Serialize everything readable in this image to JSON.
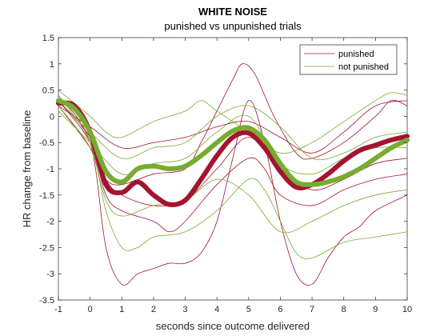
{
  "chart_data": {
    "type": "line",
    "title": "WHITE NOISE",
    "subtitle": "punished vs unpunished trials",
    "xlabel": "seconds since outcome delivered",
    "ylabel": "HR change from baseline",
    "xlim": [
      -1,
      10
    ],
    "ylim": [
      -3.5,
      1.5
    ],
    "xticks": [
      -1,
      0,
      1,
      2,
      3,
      4,
      5,
      6,
      7,
      8,
      9,
      10
    ],
    "yticks": [
      -3.5,
      -3,
      -2.5,
      -2,
      -1.5,
      -1,
      -0.5,
      0,
      0.5,
      1,
      1.5
    ],
    "grid": false,
    "legend_position": "top-right",
    "colors": {
      "punished": "#a2142f",
      "not_punished": "#77ac30"
    },
    "series": [
      {
        "name": "punished",
        "role": "mean",
        "values": [
          [
            -1,
            0.25
          ],
          [
            -0.5,
            0.2
          ],
          [
            0,
            -0.3
          ],
          [
            0.5,
            -1.3
          ],
          [
            1,
            -1.45
          ],
          [
            1.5,
            -1.25
          ],
          [
            2,
            -1.5
          ],
          [
            2.5,
            -1.68
          ],
          [
            3,
            -1.6
          ],
          [
            3.5,
            -1.2
          ],
          [
            4,
            -0.75
          ],
          [
            4.5,
            -0.4
          ],
          [
            5,
            -0.32
          ],
          [
            5.5,
            -0.6
          ],
          [
            6,
            -1.05
          ],
          [
            6.5,
            -1.35
          ],
          [
            7,
            -1.3
          ],
          [
            7.5,
            -1.1
          ],
          [
            8,
            -0.85
          ],
          [
            8.5,
            -0.65
          ],
          [
            9,
            -0.55
          ],
          [
            9.5,
            -0.45
          ],
          [
            10,
            -0.38
          ]
        ]
      },
      {
        "name": "not punished",
        "role": "mean",
        "values": [
          [
            -1,
            0.3
          ],
          [
            -0.5,
            0.15
          ],
          [
            0,
            -0.3
          ],
          [
            0.5,
            -1.05
          ],
          [
            1,
            -1.25
          ],
          [
            1.5,
            -1.0
          ],
          [
            2,
            -0.95
          ],
          [
            2.5,
            -1.0
          ],
          [
            3,
            -0.95
          ],
          [
            3.5,
            -0.75
          ],
          [
            4,
            -0.5
          ],
          [
            4.5,
            -0.28
          ],
          [
            5,
            -0.22
          ],
          [
            5.5,
            -0.45
          ],
          [
            6,
            -0.9
          ],
          [
            6.5,
            -1.25
          ],
          [
            7,
            -1.3
          ],
          [
            7.5,
            -1.25
          ],
          [
            8,
            -1.15
          ],
          [
            8.5,
            -1.0
          ],
          [
            9,
            -0.8
          ],
          [
            9.5,
            -0.6
          ],
          [
            10,
            -0.45
          ]
        ]
      },
      {
        "name": "punished",
        "role": "trial",
        "values": [
          [
            -1,
            0.4
          ],
          [
            0,
            -0.5
          ],
          [
            0.5,
            -2.5
          ],
          [
            1,
            -3.2
          ],
          [
            1.5,
            -3.0
          ],
          [
            2,
            -2.9
          ],
          [
            2.5,
            -2.8
          ],
          [
            3,
            -2.8
          ],
          [
            3.5,
            -2.6
          ],
          [
            4,
            -2.0
          ],
          [
            4.5,
            -0.8
          ],
          [
            5,
            0.3
          ],
          [
            5.5,
            -0.5
          ],
          [
            6,
            -2.0
          ],
          [
            6.5,
            -3.0
          ],
          [
            7,
            -3.2
          ],
          [
            7.5,
            -2.7
          ],
          [
            8,
            -2.3
          ],
          [
            8.5,
            -2.1
          ],
          [
            9,
            -1.8
          ],
          [
            10,
            -1.5
          ]
        ]
      },
      {
        "name": "punished",
        "role": "trial",
        "values": [
          [
            -1,
            0.2
          ],
          [
            0,
            -0.6
          ],
          [
            0.5,
            -1.2
          ],
          [
            1,
            -1.3
          ],
          [
            2,
            -1.1
          ],
          [
            3,
            -1.0
          ],
          [
            3.5,
            -0.5
          ],
          [
            4,
            0.1
          ],
          [
            4.5,
            0.7
          ],
          [
            4.8,
            1.0
          ],
          [
            5.2,
            0.8
          ],
          [
            5.8,
            0.0
          ],
          [
            6.5,
            -0.7
          ],
          [
            7,
            -0.8
          ],
          [
            8,
            -0.5
          ],
          [
            9,
            0.0
          ],
          [
            9.5,
            0.3
          ],
          [
            10,
            0.2
          ]
        ]
      },
      {
        "name": "punished",
        "role": "trial",
        "values": [
          [
            -1,
            0.3
          ],
          [
            0,
            -0.5
          ],
          [
            0.5,
            -1.5
          ],
          [
            1,
            -1.8
          ],
          [
            2,
            -2.0
          ],
          [
            2.5,
            -2.2
          ],
          [
            3,
            -2.0
          ],
          [
            4,
            -1.3
          ],
          [
            5,
            -0.8
          ],
          [
            5.5,
            -1.0
          ],
          [
            6,
            -1.5
          ],
          [
            7,
            -1.7
          ],
          [
            8,
            -1.4
          ],
          [
            9,
            -1.2
          ],
          [
            10,
            -1.1
          ]
        ]
      },
      {
        "name": "punished",
        "role": "trial",
        "values": [
          [
            -1,
            0.2
          ],
          [
            0,
            -0.2
          ],
          [
            1,
            -0.6
          ],
          [
            2,
            -0.5
          ],
          [
            3,
            -0.4
          ],
          [
            4,
            -0.2
          ],
          [
            5,
            -0.1
          ],
          [
            6,
            -0.4
          ],
          [
            7,
            -0.7
          ],
          [
            8,
            -0.3
          ],
          [
            9,
            0.2
          ],
          [
            10,
            0.3
          ]
        ]
      },
      {
        "name": "punished",
        "role": "trial",
        "values": [
          [
            -1,
            0.3
          ],
          [
            0,
            -0.4
          ],
          [
            0.5,
            -1.2
          ],
          [
            1,
            -1.5
          ],
          [
            2,
            -1.7
          ],
          [
            3,
            -1.6
          ],
          [
            4,
            -1.0
          ],
          [
            5,
            -0.4
          ],
          [
            6,
            -1.0
          ],
          [
            7,
            -1.4
          ],
          [
            8,
            -1.2
          ],
          [
            9,
            -0.9
          ],
          [
            10,
            -0.8
          ]
        ]
      },
      {
        "name": "not punished",
        "role": "trial",
        "values": [
          [
            -1,
            0.4
          ],
          [
            0,
            -0.5
          ],
          [
            0.5,
            -1.8
          ],
          [
            1,
            -2.5
          ],
          [
            1.5,
            -2.5
          ],
          [
            2,
            -2.3
          ],
          [
            3,
            -2.2
          ],
          [
            4,
            -1.8
          ],
          [
            5,
            -1.2
          ],
          [
            5.5,
            -1.4
          ],
          [
            6,
            -2.0
          ],
          [
            6.5,
            -2.6
          ],
          [
            7,
            -2.7
          ],
          [
            8,
            -2.4
          ],
          [
            9,
            -2.3
          ],
          [
            10,
            -2.2
          ]
        ]
      },
      {
        "name": "not punished",
        "role": "trial",
        "values": [
          [
            -1,
            0.5
          ],
          [
            0,
            0.0
          ],
          [
            0.5,
            -0.3
          ],
          [
            1,
            -0.4
          ],
          [
            2,
            -0.1
          ],
          [
            3,
            0.1
          ],
          [
            3.5,
            0.3
          ],
          [
            4,
            0.1
          ],
          [
            5,
            -0.3
          ],
          [
            6,
            -0.7
          ],
          [
            7,
            -0.5
          ],
          [
            8,
            -0.1
          ],
          [
            9,
            0.3
          ],
          [
            9.5,
            0.45
          ],
          [
            10,
            0.4
          ]
        ]
      },
      {
        "name": "not punished",
        "role": "trial",
        "values": [
          [
            -1,
            0.2
          ],
          [
            0,
            -0.6
          ],
          [
            0.5,
            -1.6
          ],
          [
            1,
            -1.9
          ],
          [
            2,
            -1.7
          ],
          [
            3,
            -1.6
          ],
          [
            4,
            -1.2
          ],
          [
            5,
            -1.5
          ],
          [
            6,
            -2.2
          ],
          [
            7,
            -2.0
          ],
          [
            8,
            -1.7
          ],
          [
            9,
            -1.5
          ],
          [
            10,
            -1.4
          ]
        ]
      },
      {
        "name": "not punished",
        "role": "trial",
        "values": [
          [
            -1,
            0.3
          ],
          [
            0,
            -0.3
          ],
          [
            1,
            -0.8
          ],
          [
            2,
            -0.6
          ],
          [
            3,
            -0.5
          ],
          [
            4,
            0.0
          ],
          [
            5,
            0.2
          ],
          [
            6,
            -0.2
          ],
          [
            7,
            -0.8
          ],
          [
            8,
            -0.7
          ],
          [
            9,
            -0.4
          ],
          [
            10,
            -0.3
          ]
        ]
      },
      {
        "name": "not punished",
        "role": "trial",
        "values": [
          [
            -1,
            0.1
          ],
          [
            0,
            -0.5
          ],
          [
            1,
            -1.1
          ],
          [
            2,
            -0.9
          ],
          [
            3,
            -0.8
          ],
          [
            4,
            -0.3
          ],
          [
            5,
            0.0
          ],
          [
            6,
            -0.9
          ],
          [
            7,
            -1.1
          ],
          [
            8,
            -0.8
          ],
          [
            9,
            -0.6
          ],
          [
            10,
            -0.6
          ]
        ]
      }
    ]
  }
}
